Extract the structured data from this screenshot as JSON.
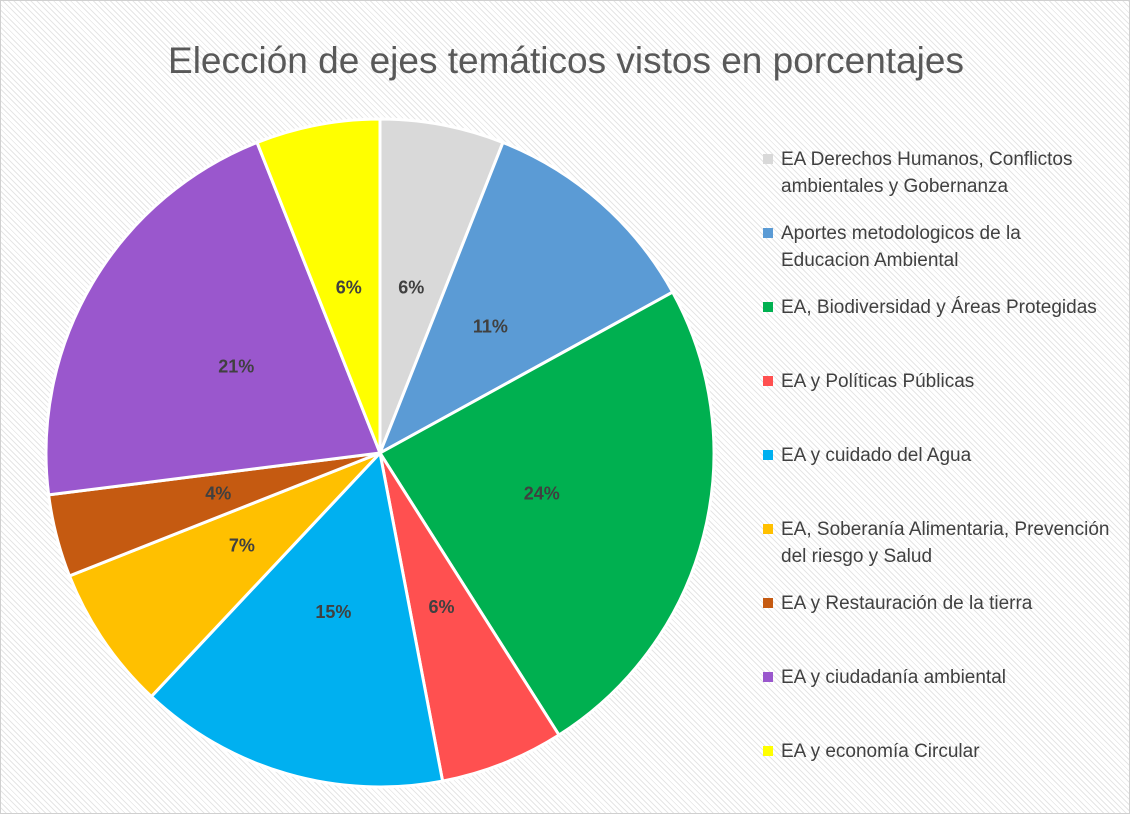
{
  "chart_data": {
    "type": "pie",
    "title": "Elección de ejes temáticos vistos en porcentajes",
    "categories": [
      "EA Derechos Humanos, Conflictos ambientales y Gobernanza",
      "Aportes metodologicos de la Educacion Ambiental",
      "EA, Biodiversidad y Áreas Protegidas",
      "EA y Políticas Públicas",
      "EA y cuidado del Agua",
      "EA, Soberanía Alimentaria, Prevención del riesgo y Salud",
      "EA y Restauración de la tierra",
      "EA y ciudadanía ambiental",
      "EA y economía Circular"
    ],
    "values": [
      6,
      11,
      24,
      6,
      15,
      7,
      4,
      21,
      6
    ],
    "value_labels": [
      "6%",
      "11%",
      "24%",
      "6%",
      "15%",
      "7%",
      "4%",
      "21%",
      "6%"
    ],
    "colors": [
      "#d9d9d9",
      "#5b9bd5",
      "#00b050",
      "#ff5050",
      "#00b0f0",
      "#ffc000",
      "#c55a11",
      "#9a57cd",
      "#ffff00"
    ],
    "legend": "right"
  }
}
